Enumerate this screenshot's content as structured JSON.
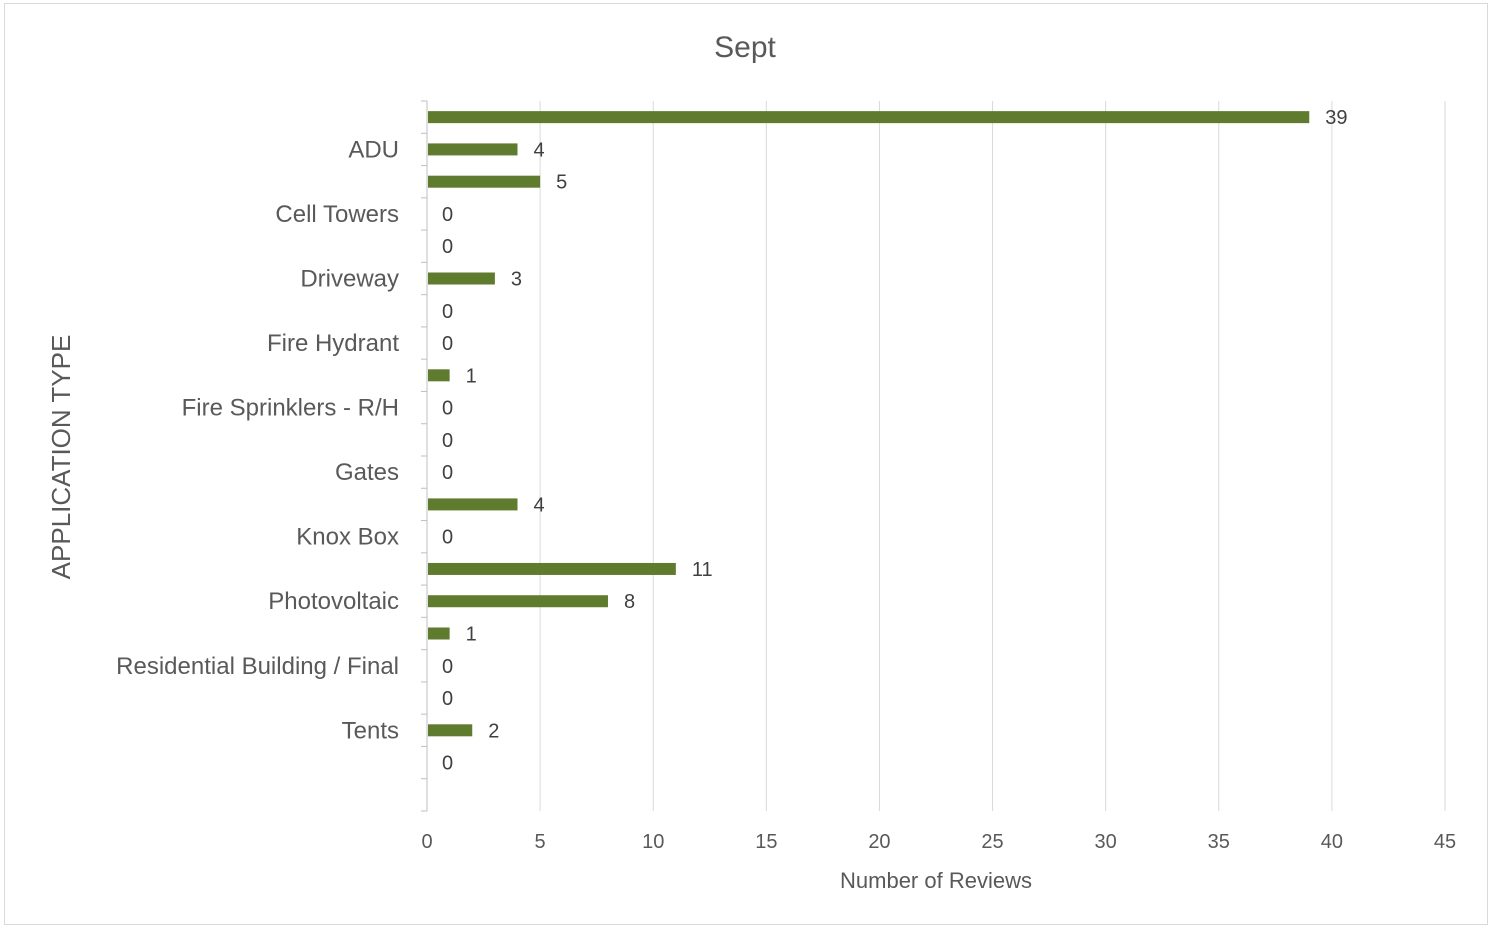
{
  "chart_data": {
    "type": "bar",
    "orientation": "horizontal",
    "title": "Sept",
    "xlabel": "Number of Reviews",
    "ylabel": "APPLICATION TYPE",
    "xlim": [
      0,
      45
    ],
    "xticks": [
      0,
      5,
      10,
      15,
      20,
      25,
      30,
      35,
      40,
      45
    ],
    "grid": "vertical",
    "legend": "none",
    "bar_color": "#5f7b2e",
    "categories": [
      "",
      "ADU",
      "",
      "Cell Towers",
      "",
      "Driveway",
      "",
      "Fire Hydrant",
      "",
      "Fire Sprinklers - R/H",
      "",
      "Gates",
      "",
      "Knox Box",
      "",
      "Photovoltaic",
      "",
      "Residential Building / Final",
      "",
      "Tents",
      ""
    ],
    "values": [
      39,
      4,
      5,
      0,
      0,
      3,
      0,
      0,
      1,
      0,
      0,
      0,
      4,
      0,
      11,
      8,
      1,
      0,
      0,
      2,
      0
    ],
    "data_labels": [
      "39",
      "4",
      "5",
      "0",
      "0",
      "3",
      "0",
      "0",
      "1",
      "0",
      "0",
      "0",
      "4",
      "0",
      "11",
      "8",
      "1",
      "0",
      "0",
      "2",
      "0"
    ]
  }
}
